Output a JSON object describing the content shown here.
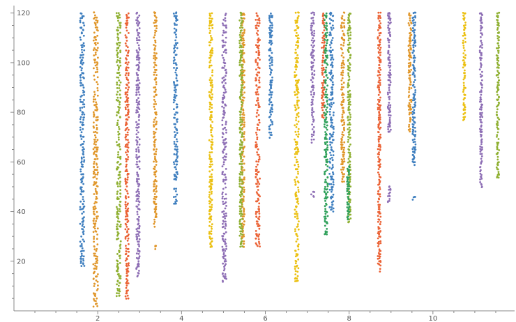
{
  "chart_data": {
    "type": "scatter",
    "title": "",
    "xlabel": "",
    "ylabel": "",
    "xlim": [
      0,
      11.95
    ],
    "ylim": [
      0,
      123
    ],
    "grid": false,
    "x_ticks": [
      2,
      4,
      6,
      8,
      10
    ],
    "y_ticks": [
      20,
      40,
      60,
      80,
      100,
      120
    ],
    "x_tick_labels": [
      "2",
      "4",
      "6",
      "8",
      "10"
    ],
    "y_tick_labels": [
      "20",
      "40",
      "60",
      "80",
      "100",
      "120"
    ],
    "series": [
      {
        "color": "#3f7fbf",
        "columns": [
          {
            "x": 1.63,
            "width": 0.1,
            "y_min": 18,
            "y_max": 120,
            "gaps": []
          },
          {
            "x": 3.86,
            "width": 0.09,
            "y_min": 43,
            "y_max": 120,
            "gaps": [
              [
                49,
                53
              ]
            ]
          },
          {
            "x": 6.13,
            "width": 0.08,
            "y_min": 70,
            "y_max": 120,
            "gaps": []
          },
          {
            "x": 7.58,
            "width": 0.1,
            "y_min": 40,
            "y_max": 120,
            "gaps": []
          },
          {
            "x": 9.55,
            "width": 0.07,
            "y_min": 45,
            "y_max": 120,
            "gaps": [
              [
                46,
                59
              ]
            ]
          }
        ]
      },
      {
        "color": "#e0962a",
        "columns": [
          {
            "x": 1.95,
            "width": 0.11,
            "y_min": 2,
            "y_max": 120,
            "gaps": []
          },
          {
            "x": 3.37,
            "width": 0.07,
            "y_min": 25,
            "y_max": 120,
            "gaps": [
              [
                26,
                34
              ]
            ]
          },
          {
            "x": 5.47,
            "width": 0.07,
            "y_min": 26,
            "y_max": 120,
            "gaps": []
          },
          {
            "x": 9.45,
            "width": 0.07,
            "y_min": 72,
            "y_max": 120,
            "gaps": []
          },
          {
            "x": 7.85,
            "width": 0.08,
            "y_min": 52,
            "y_max": 120,
            "gaps": []
          }
        ]
      },
      {
        "color": "#8fb032",
        "columns": [
          {
            "x": 2.5,
            "width": 0.1,
            "y_min": 6,
            "y_max": 120,
            "gaps": []
          },
          {
            "x": 5.42,
            "width": 0.07,
            "y_min": 26,
            "y_max": 120,
            "gaps": []
          },
          {
            "x": 8.0,
            "width": 0.07,
            "y_min": 36,
            "y_max": 120,
            "gaps": []
          },
          {
            "x": 11.55,
            "width": 0.06,
            "y_min": 54,
            "y_max": 120,
            "gaps": []
          }
        ]
      },
      {
        "color": "#eb6235",
        "columns": [
          {
            "x": 2.7,
            "width": 0.08,
            "y_min": 5,
            "y_max": 120,
            "gaps": []
          },
          {
            "x": 5.82,
            "width": 0.1,
            "y_min": 26,
            "y_max": 120,
            "gaps": []
          },
          {
            "x": 7.38,
            "width": 0.07,
            "y_min": 78,
            "y_max": 120,
            "gaps": []
          },
          {
            "x": 8.72,
            "width": 0.07,
            "y_min": 16,
            "y_max": 120,
            "gaps": []
          }
        ]
      },
      {
        "color": "#8e6fb5",
        "columns": [
          {
            "x": 2.96,
            "width": 0.08,
            "y_min": 14,
            "y_max": 120,
            "gaps": []
          },
          {
            "x": 5.02,
            "width": 0.1,
            "y_min": 12,
            "y_max": 120,
            "gaps": []
          },
          {
            "x": 7.13,
            "width": 0.08,
            "y_min": 46,
            "y_max": 120,
            "gaps": [
              [
                48,
                68
              ]
            ]
          },
          {
            "x": 8.96,
            "width": 0.07,
            "y_min": 44,
            "y_max": 120,
            "gaps": [
              [
                50,
                72
              ]
            ]
          },
          {
            "x": 11.15,
            "width": 0.06,
            "y_min": 50,
            "y_max": 120,
            "gaps": []
          }
        ]
      },
      {
        "color": "#ebc011",
        "columns": [
          {
            "x": 4.7,
            "width": 0.08,
            "y_min": 26,
            "y_max": 120,
            "gaps": []
          },
          {
            "x": 6.75,
            "width": 0.1,
            "y_min": 12,
            "y_max": 120,
            "gaps": []
          },
          {
            "x": 10.75,
            "width": 0.06,
            "y_min": 77,
            "y_max": 120,
            "gaps": []
          }
        ]
      },
      {
        "color": "#2fa05a",
        "columns": [
          {
            "x": 7.45,
            "width": 0.08,
            "y_min": 31,
            "y_max": 120,
            "gaps": []
          },
          {
            "x": 7.98,
            "width": 0.06,
            "y_min": 37,
            "y_max": 58,
            "gaps": []
          }
        ]
      }
    ]
  }
}
